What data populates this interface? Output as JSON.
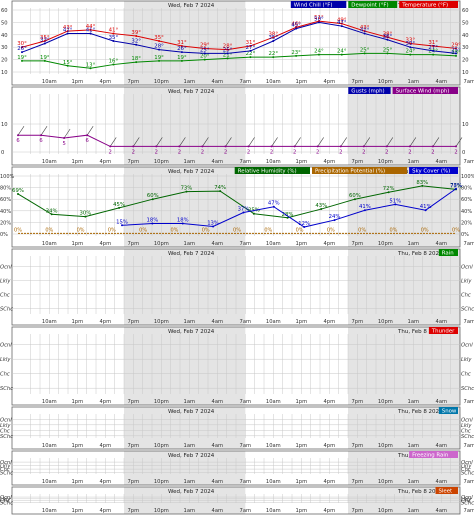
{
  "hours": [
    "10am",
    "1pm",
    "4pm",
    "7pm",
    "10pm",
    "1am",
    "4am",
    "7am",
    "10am",
    "1pm",
    "4pm",
    "7pm",
    "10pm",
    "1am",
    "4am",
    "7am"
  ],
  "dates": {
    "day1": "Wed, Feb 7 2024",
    "day2": "Thu, Feb 8 2024"
  },
  "colors": {
    "temperature": "#dd0000",
    "dewpoint": "#008800",
    "windchill": "#0000aa",
    "surface_wind": "#880088",
    "humidity": "#006600",
    "precip": "#aa6600",
    "sky": "#0000cc",
    "night_shade": "#e4e4e4"
  },
  "chart_data": [
    {
      "type": "line",
      "id": "temperature",
      "yticks": [
        10,
        20,
        30,
        40,
        50,
        60
      ],
      "ylim": [
        10,
        60
      ],
      "legend": [
        "Wind Chill (°F)",
        "Dewpoint (°F)",
        "Temperature (°F)"
      ],
      "series": [
        {
          "name": "Temperature (°F)",
          "label_values": [
            30,
            35,
            43,
            44,
            41,
            39,
            35,
            31,
            29,
            28,
            31,
            38,
            46,
            51,
            49,
            43,
            38,
            33,
            31,
            29
          ]
        },
        {
          "name": "Dewpoint (°F)",
          "label_values": [
            19,
            19,
            15,
            13,
            16,
            18,
            19,
            19,
            20,
            21,
            22,
            22,
            23,
            24,
            24,
            25,
            25,
            24,
            24,
            23
          ]
        },
        {
          "name": "Wind Chill (°F)",
          "label_values": [
            26,
            33,
            41,
            41,
            35,
            32,
            28,
            26,
            25,
            25,
            27,
            35,
            45,
            50,
            47,
            41,
            36,
            30,
            27,
            25
          ]
        }
      ]
    },
    {
      "type": "line",
      "id": "wind",
      "yticks": [
        0,
        10
      ],
      "ylim": [
        0,
        20
      ],
      "legend": [
        "Gusts (mph)",
        "Surface Wind (mph)"
      ],
      "series": [
        {
          "name": "Surface Wind (mph)",
          "label_values": [
            6,
            6,
            5,
            6,
            2,
            2,
            2,
            2,
            2,
            2,
            2,
            2,
            2,
            2,
            2,
            2,
            2,
            2,
            2,
            2
          ]
        }
      ]
    },
    {
      "type": "line",
      "id": "humidity",
      "yticks": [
        "0%",
        "20%",
        "40%",
        "60%",
        "80%",
        "100%"
      ],
      "ylim": [
        0,
        100
      ],
      "legend": [
        "Relative Humidity (%)",
        "Precipitation Potential (%)",
        "Sky Cover (%)"
      ],
      "series": [
        {
          "name": "Relative Humidity (%)",
          "label_values": [
            69,
            34,
            30,
            45,
            60,
            73,
            74,
            35,
            28,
            43,
            60,
            72,
            83,
            77
          ]
        },
        {
          "name": "Sky Cover (%)",
          "label_values": [
            15,
            18,
            18,
            13,
            37,
            47,
            12,
            24,
            41,
            51,
            41,
            78
          ]
        },
        {
          "name": "Precipitation Potential (%)",
          "label_values": [
            "0%",
            "0%",
            "0%",
            "0%",
            "0%",
            "0%",
            "0%",
            "0%",
            "0%",
            "0%",
            "0%",
            "0%",
            "0%",
            "0%",
            "0%"
          ]
        }
      ]
    },
    {
      "type": "table",
      "id": "rain",
      "legend": "Rain",
      "rows": [
        "Ocnl",
        "Lkly",
        "Chc",
        "SChc"
      ]
    },
    {
      "type": "table",
      "id": "thunder",
      "legend": "Thunder",
      "rows": [
        "Ocnl",
        "Lkly",
        "Chc",
        "SChc"
      ]
    },
    {
      "type": "table",
      "id": "snow",
      "legend": "Snow",
      "rows": [
        "Ocnl",
        "Lkly",
        "Chc",
        "SChc"
      ]
    },
    {
      "type": "table",
      "id": "freezing-rain",
      "legend": "Freezing Rain",
      "rows": [
        "Ocnl",
        "Lkly",
        "Chc",
        "SChc"
      ]
    },
    {
      "type": "table",
      "id": "sleet",
      "legend": "Sleet",
      "rows": [
        "Ocnl",
        "Lkly",
        "Chc",
        "SChc"
      ]
    }
  ]
}
